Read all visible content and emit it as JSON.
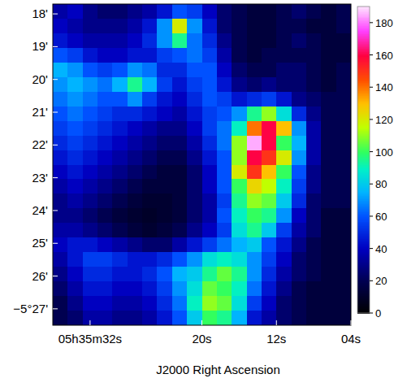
{
  "chart_data": {
    "type": "heatmap",
    "x_label": "J2000 Right Ascension",
    "xlim": [
      36,
      4
    ],
    "xticks": [
      {
        "value": 32,
        "label": "05h35m32s"
      },
      {
        "value": 20,
        "label": "20s"
      },
      {
        "value": 12,
        "label": "12s"
      },
      {
        "value": 4,
        "label": "04s"
      }
    ],
    "ylim": [
      27.5,
      17.7
    ],
    "yticks": [
      {
        "value": 18,
        "label": "18'"
      },
      {
        "value": 19,
        "label": "19'"
      },
      {
        "value": 20,
        "label": "20'"
      },
      {
        "value": 21,
        "label": "21'"
      },
      {
        "value": 22,
        "label": "22'"
      },
      {
        "value": 23,
        "label": "23'"
      },
      {
        "value": 24,
        "label": "24'"
      },
      {
        "value": 25,
        "label": "25'"
      },
      {
        "value": 26,
        "label": "26'"
      },
      {
        "value": 27,
        "label": "−5°27'"
      }
    ],
    "cells": [
      [
        35,
        40,
        30,
        25,
        25,
        30,
        35,
        45,
        60,
        55,
        40,
        25,
        20,
        15,
        15,
        20,
        25,
        20,
        15,
        20
      ],
      [
        40,
        35,
        30,
        30,
        30,
        35,
        45,
        70,
        120,
        70,
        45,
        25,
        20,
        15,
        15,
        20,
        20,
        15,
        15,
        20
      ],
      [
        45,
        40,
        35,
        35,
        35,
        40,
        50,
        70,
        95,
        65,
        50,
        30,
        20,
        15,
        15,
        20,
        25,
        20,
        15,
        15
      ],
      [
        60,
        55,
        45,
        40,
        40,
        45,
        45,
        55,
        60,
        65,
        55,
        35,
        20,
        15,
        20,
        20,
        20,
        20,
        15,
        15
      ],
      [
        75,
        70,
        60,
        55,
        60,
        70,
        65,
        50,
        50,
        60,
        60,
        40,
        25,
        20,
        20,
        25,
        25,
        20,
        15,
        20
      ],
      [
        70,
        75,
        70,
        65,
        75,
        95,
        75,
        55,
        45,
        55,
        60,
        45,
        30,
        25,
        30,
        25,
        25,
        20,
        15,
        20
      ],
      [
        65,
        70,
        65,
        60,
        60,
        70,
        55,
        45,
        40,
        50,
        60,
        55,
        45,
        50,
        55,
        45,
        30,
        25,
        20,
        20
      ],
      [
        60,
        65,
        60,
        55,
        50,
        50,
        45,
        40,
        35,
        45,
        55,
        60,
        70,
        95,
        110,
        85,
        50,
        30,
        20,
        20
      ],
      [
        55,
        60,
        55,
        50,
        45,
        40,
        35,
        30,
        30,
        40,
        55,
        65,
        90,
        140,
        160,
        130,
        70,
        35,
        20,
        20
      ],
      [
        50,
        55,
        50,
        45,
        40,
        35,
        30,
        25,
        25,
        35,
        50,
        65,
        110,
        185,
        160,
        100,
        75,
        35,
        20,
        20
      ],
      [
        45,
        50,
        45,
        40,
        35,
        30,
        25,
        20,
        20,
        30,
        45,
        60,
        110,
        160,
        150,
        120,
        70,
        35,
        20,
        20
      ],
      [
        40,
        45,
        40,
        35,
        30,
        25,
        20,
        15,
        15,
        25,
        40,
        60,
        120,
        150,
        130,
        100,
        60,
        30,
        20,
        20
      ],
      [
        35,
        40,
        35,
        30,
        25,
        20,
        15,
        15,
        15,
        25,
        40,
        60,
        100,
        125,
        115,
        90,
        55,
        30,
        20,
        20
      ],
      [
        30,
        35,
        30,
        25,
        20,
        15,
        12,
        12,
        15,
        25,
        35,
        55,
        95,
        110,
        105,
        80,
        50,
        25,
        20,
        20
      ],
      [
        30,
        30,
        25,
        20,
        15,
        12,
        10,
        12,
        15,
        25,
        35,
        60,
        90,
        100,
        95,
        70,
        40,
        25,
        15,
        15
      ],
      [
        35,
        35,
        30,
        25,
        20,
        15,
        12,
        15,
        20,
        30,
        40,
        55,
        85,
        95,
        80,
        55,
        35,
        25,
        15,
        15
      ],
      [
        40,
        45,
        45,
        40,
        35,
        30,
        25,
        25,
        35,
        45,
        55,
        65,
        75,
        80,
        60,
        45,
        30,
        20,
        15,
        15
      ],
      [
        35,
        45,
        55,
        55,
        50,
        45,
        45,
        50,
        60,
        70,
        85,
        90,
        85,
        70,
        55,
        40,
        25,
        20,
        15,
        15
      ],
      [
        30,
        40,
        50,
        50,
        45,
        45,
        50,
        60,
        75,
        80,
        95,
        105,
        95,
        70,
        50,
        35,
        25,
        20,
        15,
        15
      ],
      [
        25,
        35,
        45,
        45,
        40,
        40,
        45,
        55,
        70,
        85,
        105,
        100,
        90,
        65,
        45,
        30,
        20,
        15,
        15,
        15
      ],
      [
        20,
        30,
        40,
        40,
        35,
        35,
        40,
        50,
        65,
        90,
        110,
        105,
        85,
        55,
        40,
        25,
        20,
        15,
        15,
        15
      ],
      [
        20,
        25,
        35,
        35,
        30,
        30,
        35,
        45,
        60,
        80,
        100,
        95,
        75,
        45,
        35,
        25,
        20,
        15,
        15,
        15
      ]
    ],
    "colorbar_lim": [
      0,
      190
    ],
    "colorbar_ticks": [
      0,
      20,
      40,
      60,
      80,
      100,
      120,
      140,
      160,
      180
    ]
  }
}
